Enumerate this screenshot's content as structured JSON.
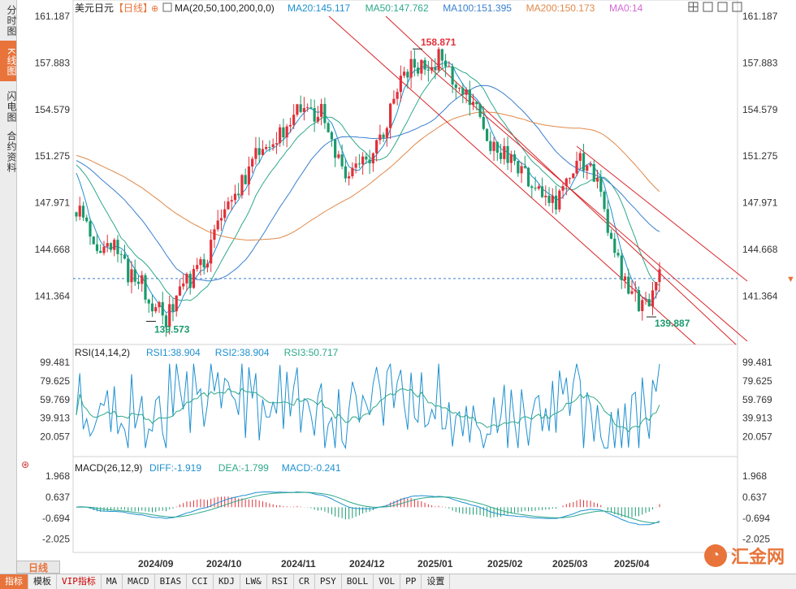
{
  "sidebar": {
    "tabs": [
      {
        "label": "分时图",
        "active": false
      },
      {
        "label": "K线图",
        "active": true
      },
      {
        "label": "闪电图",
        "active": false
      },
      {
        "label": "合约资料",
        "active": false
      }
    ]
  },
  "main_panel": {
    "title": "美元日元",
    "period_tag": "【日线】",
    "ma_label": "MA(20,50,100,200,0,0)",
    "ma_values": [
      {
        "text": "MA20:145.117",
        "color": "#1e90d0"
      },
      {
        "text": "MA50:147.762",
        "color": "#2ea88a"
      },
      {
        "text": "MA100:151.395",
        "color": "#3a7fcf"
      },
      {
        "text": "MA200:150.173",
        "color": "#e0894a"
      },
      {
        "text": "MA0:14",
        "color": "#d36ad3"
      }
    ],
    "price_ticks": [
      "161.187",
      "157.883",
      "154.579",
      "151.275",
      "147.971",
      "144.668",
      "141.364"
    ],
    "high_label": "158.871",
    "low_label": "139.573",
    "recent_low_label": "139.887",
    "current_price": 142.6
  },
  "rsi_panel": {
    "label": "RSI(14,14,2)",
    "values": [
      {
        "text": "RSI1:38.904",
        "color": "#1e90d0"
      },
      {
        "text": "RSI2:38.904",
        "color": "#1e90d0"
      },
      {
        "text": "RSI3:50.717",
        "color": "#2ea88a"
      }
    ],
    "ticks": [
      "99.481",
      "79.625",
      "59.769",
      "39.913",
      "20.057"
    ]
  },
  "macd_panel": {
    "label": "MACD(26,12,9)",
    "values": [
      {
        "text": "DIFF:-1.919",
        "color": "#1e90d0"
      },
      {
        "text": "DEA:-1.799",
        "color": "#2ea88a"
      },
      {
        "text": "MACD:-0.241",
        "color": "#1e90d0"
      }
    ],
    "ticks": [
      "1.968",
      "0.637",
      "-0.694",
      "-2.025"
    ]
  },
  "x_axis": {
    "labels": [
      "2024/09",
      "2024/10",
      "2024/11",
      "2024/12",
      "2025/01",
      "2025/02",
      "2025/03",
      "2025/04"
    ]
  },
  "period_button": "日线",
  "toolbar": [
    "指标",
    "模板",
    "VIP指标",
    "MA",
    "MACD",
    "BIAS",
    "CCI",
    "KDJ",
    "LW&",
    "RSI",
    "CR",
    "PSY",
    "BOLL",
    "VOL",
    "PP",
    "设置"
  ],
  "logo": {
    "text": "汇金网",
    "mark": "◔"
  },
  "colors": {
    "up": "#e0303a",
    "down": "#1a9a6c",
    "accent": "#e8743b",
    "channel": "#d9262a"
  },
  "chart_data": {
    "type": "candlestick",
    "title": "美元日元",
    "y_range": [
      139.0,
      161.5
    ],
    "x_range": [
      "2024/08",
      "2025/04"
    ],
    "closing_path": [
      [
        "2024/08",
        147.5
      ],
      [
        "2024/08",
        146.2
      ],
      [
        "2024/08",
        144.5
      ],
      [
        "2024/08",
        144.7
      ],
      [
        "2024/09",
        143.0
      ],
      [
        "2024/09",
        142.3
      ],
      [
        "2024/09",
        140.7
      ],
      [
        "2024/09",
        139.6
      ],
      [
        "2024/09",
        142.2
      ],
      [
        "2024/09",
        142.6
      ],
      [
        "2024/10",
        143.8
      ],
      [
        "2024/10",
        146.3
      ],
      [
        "2024/10",
        148.5
      ],
      [
        "2024/10",
        149.5
      ],
      [
        "2024/10",
        151.7
      ],
      [
        "2024/10",
        152.2
      ],
      [
        "2024/11",
        153.3
      ],
      [
        "2024/11",
        155.0
      ],
      [
        "2024/11",
        154.3
      ],
      [
        "2024/11",
        154.3
      ],
      [
        "2024/11",
        151.3
      ],
      [
        "2024/12",
        149.8
      ],
      [
        "2024/12",
        150.6
      ],
      [
        "2024/12",
        151.9
      ],
      [
        "2024/12",
        153.7
      ],
      [
        "2024/12",
        156.6
      ],
      [
        "2024/12",
        157.8
      ],
      [
        "2025/01",
        157.6
      ],
      [
        "2025/01",
        158.2
      ],
      [
        "2025/01",
        157.0
      ],
      [
        "2025/01",
        155.6
      ],
      [
        "2025/02",
        154.3
      ],
      [
        "2025/02",
        152.1
      ],
      [
        "2025/02",
        151.4
      ],
      [
        "2025/02",
        150.8
      ],
      [
        "2025/02",
        149.5
      ],
      [
        "2025/03",
        148.7
      ],
      [
        "2025/03",
        147.6
      ],
      [
        "2025/03",
        149.8
      ],
      [
        "2025/03",
        151.0
      ],
      [
        "2025/04",
        149.8
      ],
      [
        "2025/04",
        146.2
      ],
      [
        "2025/04",
        142.9
      ],
      [
        "2025/04",
        141.3
      ],
      [
        "2025/04",
        140.4
      ],
      [
        "2025/04",
        142.6
      ]
    ],
    "high": 158.871,
    "low": 139.573,
    "recent_low": 139.887,
    "indicators": {
      "MA20": 145.117,
      "MA50": 147.762,
      "MA100": 151.395,
      "MA200": 150.173,
      "RSI1": 38.904,
      "RSI2": 38.904,
      "RSI3": 50.717,
      "DIFF": -1.919,
      "DEA": -1.799,
      "MACD": -0.241
    }
  }
}
